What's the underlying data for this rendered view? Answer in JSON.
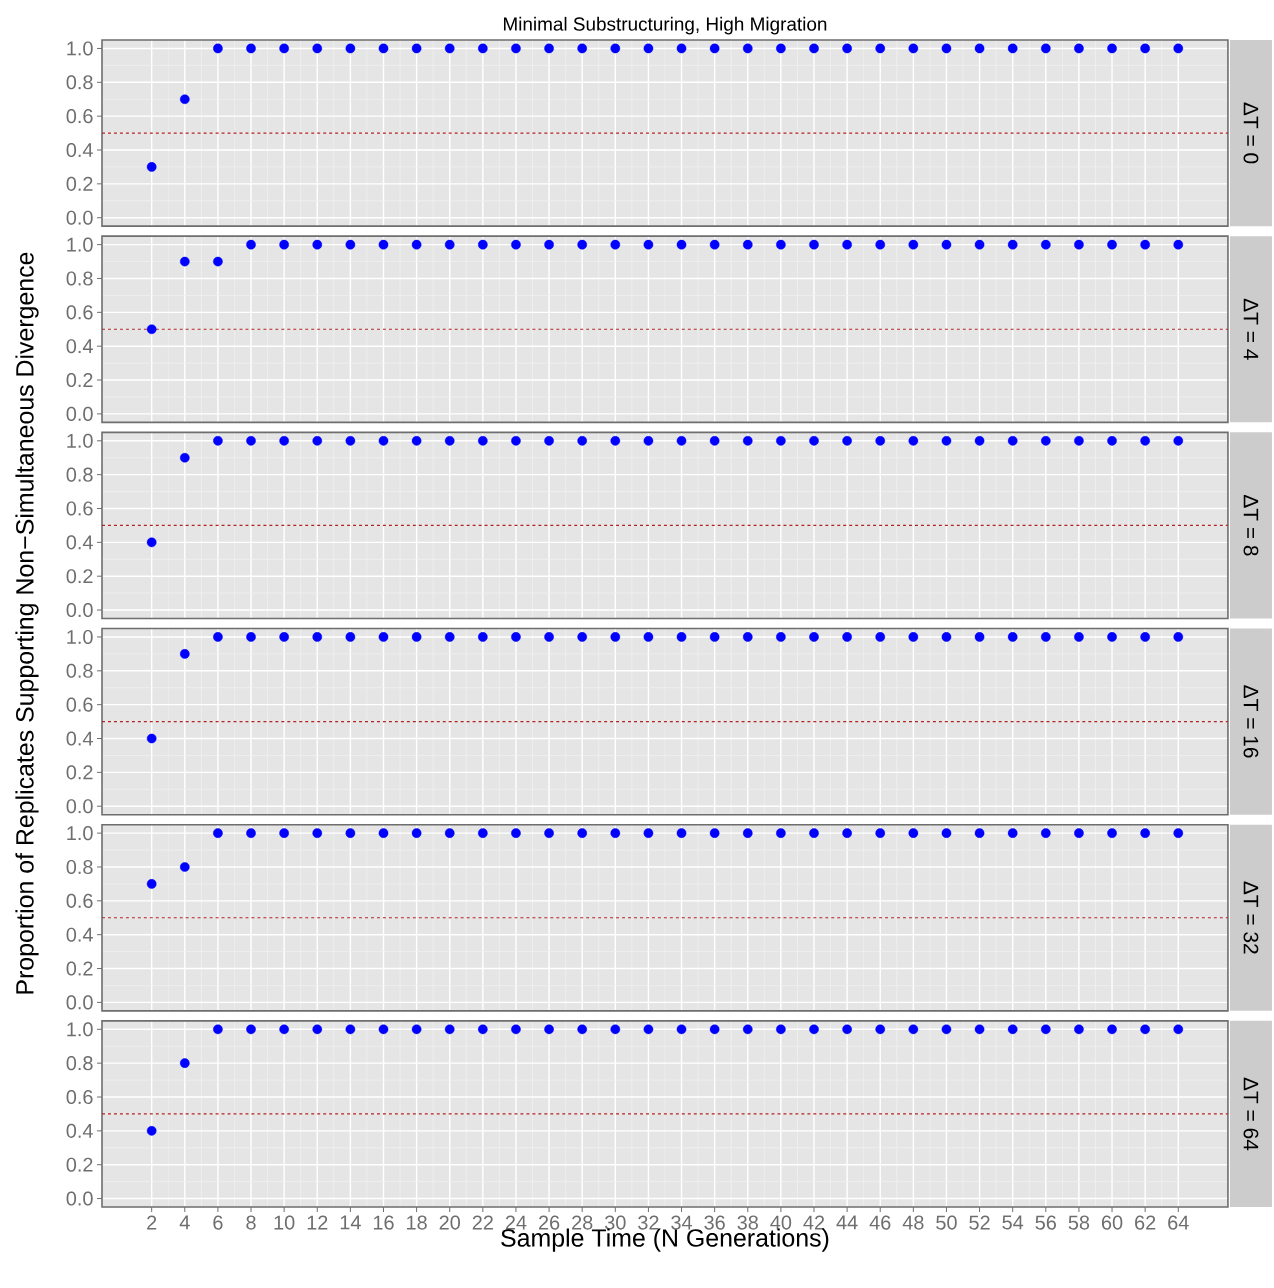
{
  "chart_data": [
    {
      "type": "scatter",
      "title": "Minimal Substructuring, High Migration",
      "y2label": "ΔT = 0",
      "ylabel": "Proportion of Replicates Supporting Non−Simultaneous Divergence",
      "x": [
        2,
        4,
        6,
        8,
        10,
        12,
        14,
        16,
        18,
        20,
        22,
        24,
        26,
        28,
        30,
        32,
        34,
        36,
        38,
        40,
        42,
        44,
        46,
        48,
        50,
        52,
        54,
        56,
        58,
        60,
        62,
        64
      ],
      "series": [
        {
          "color": "#0000ff",
          "values": [
            0.3,
            0.7,
            1,
            1,
            1,
            1,
            1,
            1,
            1,
            1,
            1,
            1,
            1,
            1,
            1,
            1,
            1,
            1,
            1,
            1,
            1,
            1,
            1,
            1,
            1,
            1,
            1,
            1,
            1,
            1,
            1,
            1
          ]
        }
      ],
      "xlim": [
        -1,
        67
      ],
      "ylim": [
        -0.05,
        1.05
      ],
      "xticks": [
        2,
        4,
        6,
        8,
        10,
        12,
        14,
        16,
        18,
        20,
        22,
        24,
        26,
        28,
        30,
        32,
        34,
        36,
        38,
        40,
        42,
        44,
        46,
        48,
        50,
        52,
        54,
        56,
        58,
        60,
        62,
        64
      ],
      "yticks": [
        {
          "value": 0,
          "label": "0.0"
        },
        {
          "value": 0.2,
          "label": "0.2"
        },
        {
          "value": 0.4,
          "label": "0.4"
        },
        {
          "value": 0.6,
          "label": "0.6"
        },
        {
          "value": 0.8,
          "label": "0.8"
        },
        {
          "value": 1,
          "label": "1.0"
        }
      ],
      "tick_labels": "y",
      "ref_lines": [
        {
          "axis": "y",
          "value": 0.5,
          "color": "#b22222",
          "line_style": "dashed"
        }
      ],
      "grid": true
    },
    {
      "type": "scatter",
      "y2label": "ΔT = 4",
      "x": [
        2,
        4,
        6,
        8,
        10,
        12,
        14,
        16,
        18,
        20,
        22,
        24,
        26,
        28,
        30,
        32,
        34,
        36,
        38,
        40,
        42,
        44,
        46,
        48,
        50,
        52,
        54,
        56,
        58,
        60,
        62,
        64
      ],
      "series": [
        {
          "color": "#0000ff",
          "values": [
            0.5,
            0.9,
            0.9,
            1,
            1,
            1,
            1,
            1,
            1,
            1,
            1,
            1,
            1,
            1,
            1,
            1,
            1,
            1,
            1,
            1,
            1,
            1,
            1,
            1,
            1,
            1,
            1,
            1,
            1,
            1,
            1,
            1
          ]
        }
      ],
      "xlim": [
        -1,
        67
      ],
      "ylim": [
        -0.05,
        1.05
      ],
      "xticks": [
        2,
        4,
        6,
        8,
        10,
        12,
        14,
        16,
        18,
        20,
        22,
        24,
        26,
        28,
        30,
        32,
        34,
        36,
        38,
        40,
        42,
        44,
        46,
        48,
        50,
        52,
        54,
        56,
        58,
        60,
        62,
        64
      ],
      "yticks": [
        {
          "value": 0,
          "label": "0.0"
        },
        {
          "value": 0.2,
          "label": "0.2"
        },
        {
          "value": 0.4,
          "label": "0.4"
        },
        {
          "value": 0.6,
          "label": "0.6"
        },
        {
          "value": 0.8,
          "label": "0.8"
        },
        {
          "value": 1,
          "label": "1.0"
        }
      ],
      "tick_labels": "y",
      "ref_lines": [
        {
          "axis": "y",
          "value": 0.5,
          "color": "#b22222",
          "line_style": "dashed"
        }
      ],
      "grid": true
    },
    {
      "type": "scatter",
      "y2label": "ΔT = 8",
      "x": [
        2,
        4,
        6,
        8,
        10,
        12,
        14,
        16,
        18,
        20,
        22,
        24,
        26,
        28,
        30,
        32,
        34,
        36,
        38,
        40,
        42,
        44,
        46,
        48,
        50,
        52,
        54,
        56,
        58,
        60,
        62,
        64
      ],
      "series": [
        {
          "color": "#0000ff",
          "values": [
            0.4,
            0.9,
            1,
            1,
            1,
            1,
            1,
            1,
            1,
            1,
            1,
            1,
            1,
            1,
            1,
            1,
            1,
            1,
            1,
            1,
            1,
            1,
            1,
            1,
            1,
            1,
            1,
            1,
            1,
            1,
            1,
            1
          ]
        }
      ],
      "xlim": [
        -1,
        67
      ],
      "ylim": [
        -0.05,
        1.05
      ],
      "xticks": [
        2,
        4,
        6,
        8,
        10,
        12,
        14,
        16,
        18,
        20,
        22,
        24,
        26,
        28,
        30,
        32,
        34,
        36,
        38,
        40,
        42,
        44,
        46,
        48,
        50,
        52,
        54,
        56,
        58,
        60,
        62,
        64
      ],
      "yticks": [
        {
          "value": 0,
          "label": "0.0"
        },
        {
          "value": 0.2,
          "label": "0.2"
        },
        {
          "value": 0.4,
          "label": "0.4"
        },
        {
          "value": 0.6,
          "label": "0.6"
        },
        {
          "value": 0.8,
          "label": "0.8"
        },
        {
          "value": 1,
          "label": "1.0"
        }
      ],
      "tick_labels": "y",
      "ref_lines": [
        {
          "axis": "y",
          "value": 0.5,
          "color": "#b22222",
          "line_style": "dashed"
        }
      ],
      "grid": true
    },
    {
      "type": "scatter",
      "y2label": "ΔT = 16",
      "x": [
        2,
        4,
        6,
        8,
        10,
        12,
        14,
        16,
        18,
        20,
        22,
        24,
        26,
        28,
        30,
        32,
        34,
        36,
        38,
        40,
        42,
        44,
        46,
        48,
        50,
        52,
        54,
        56,
        58,
        60,
        62,
        64
      ],
      "series": [
        {
          "color": "#0000ff",
          "values": [
            0.4,
            0.9,
            1,
            1,
            1,
            1,
            1,
            1,
            1,
            1,
            1,
            1,
            1,
            1,
            1,
            1,
            1,
            1,
            1,
            1,
            1,
            1,
            1,
            1,
            1,
            1,
            1,
            1,
            1,
            1,
            1,
            1
          ]
        }
      ],
      "xlim": [
        -1,
        67
      ],
      "ylim": [
        -0.05,
        1.05
      ],
      "xticks": [
        2,
        4,
        6,
        8,
        10,
        12,
        14,
        16,
        18,
        20,
        22,
        24,
        26,
        28,
        30,
        32,
        34,
        36,
        38,
        40,
        42,
        44,
        46,
        48,
        50,
        52,
        54,
        56,
        58,
        60,
        62,
        64
      ],
      "yticks": [
        {
          "value": 0,
          "label": "0.0"
        },
        {
          "value": 0.2,
          "label": "0.2"
        },
        {
          "value": 0.4,
          "label": "0.4"
        },
        {
          "value": 0.6,
          "label": "0.6"
        },
        {
          "value": 0.8,
          "label": "0.8"
        },
        {
          "value": 1,
          "label": "1.0"
        }
      ],
      "tick_labels": "y",
      "ref_lines": [
        {
          "axis": "y",
          "value": 0.5,
          "color": "#b22222",
          "line_style": "dashed"
        }
      ],
      "grid": true
    },
    {
      "type": "scatter",
      "y2label": "ΔT = 32",
      "x": [
        2,
        4,
        6,
        8,
        10,
        12,
        14,
        16,
        18,
        20,
        22,
        24,
        26,
        28,
        30,
        32,
        34,
        36,
        38,
        40,
        42,
        44,
        46,
        48,
        50,
        52,
        54,
        56,
        58,
        60,
        62,
        64
      ],
      "series": [
        {
          "color": "#0000ff",
          "values": [
            0.7,
            0.8,
            1,
            1,
            1,
            1,
            1,
            1,
            1,
            1,
            1,
            1,
            1,
            1,
            1,
            1,
            1,
            1,
            1,
            1,
            1,
            1,
            1,
            1,
            1,
            1,
            1,
            1,
            1,
            1,
            1,
            1
          ]
        }
      ],
      "xlim": [
        -1,
        67
      ],
      "ylim": [
        -0.05,
        1.05
      ],
      "xticks": [
        2,
        4,
        6,
        8,
        10,
        12,
        14,
        16,
        18,
        20,
        22,
        24,
        26,
        28,
        30,
        32,
        34,
        36,
        38,
        40,
        42,
        44,
        46,
        48,
        50,
        52,
        54,
        56,
        58,
        60,
        62,
        64
      ],
      "yticks": [
        {
          "value": 0,
          "label": "0.0"
        },
        {
          "value": 0.2,
          "label": "0.2"
        },
        {
          "value": 0.4,
          "label": "0.4"
        },
        {
          "value": 0.6,
          "label": "0.6"
        },
        {
          "value": 0.8,
          "label": "0.8"
        },
        {
          "value": 1,
          "label": "1.0"
        }
      ],
      "tick_labels": "y",
      "ref_lines": [
        {
          "axis": "y",
          "value": 0.5,
          "color": "#b22222",
          "line_style": "dashed"
        }
      ],
      "grid": true
    },
    {
      "type": "scatter",
      "y2label": "ΔT = 64",
      "xlabel": "Sample Time (N Generations)",
      "x": [
        2,
        4,
        6,
        8,
        10,
        12,
        14,
        16,
        18,
        20,
        22,
        24,
        26,
        28,
        30,
        32,
        34,
        36,
        38,
        40,
        42,
        44,
        46,
        48,
        50,
        52,
        54,
        56,
        58,
        60,
        62,
        64
      ],
      "series": [
        {
          "color": "#0000ff",
          "values": [
            0.4,
            0.8,
            1,
            1,
            1,
            1,
            1,
            1,
            1,
            1,
            1,
            1,
            1,
            1,
            1,
            1,
            1,
            1,
            1,
            1,
            1,
            1,
            1,
            1,
            1,
            1,
            1,
            1,
            1,
            1,
            1,
            1
          ]
        }
      ],
      "xlim": [
        -1,
        67
      ],
      "ylim": [
        -0.05,
        1.05
      ],
      "xticks": [
        2,
        4,
        6,
        8,
        10,
        12,
        14,
        16,
        18,
        20,
        22,
        24,
        26,
        28,
        30,
        32,
        34,
        36,
        38,
        40,
        42,
        44,
        46,
        48,
        50,
        52,
        54,
        56,
        58,
        60,
        62,
        64
      ],
      "yticks": [
        {
          "value": 0,
          "label": "0.0"
        },
        {
          "value": 0.2,
          "label": "0.2"
        },
        {
          "value": 0.4,
          "label": "0.4"
        },
        {
          "value": 0.6,
          "label": "0.6"
        },
        {
          "value": 0.8,
          "label": "0.8"
        },
        {
          "value": 1,
          "label": "1.0"
        }
      ],
      "ref_lines": [
        {
          "axis": "y",
          "value": 0.5,
          "color": "#b22222",
          "line_style": "dashed"
        }
      ],
      "grid": true
    }
  ]
}
